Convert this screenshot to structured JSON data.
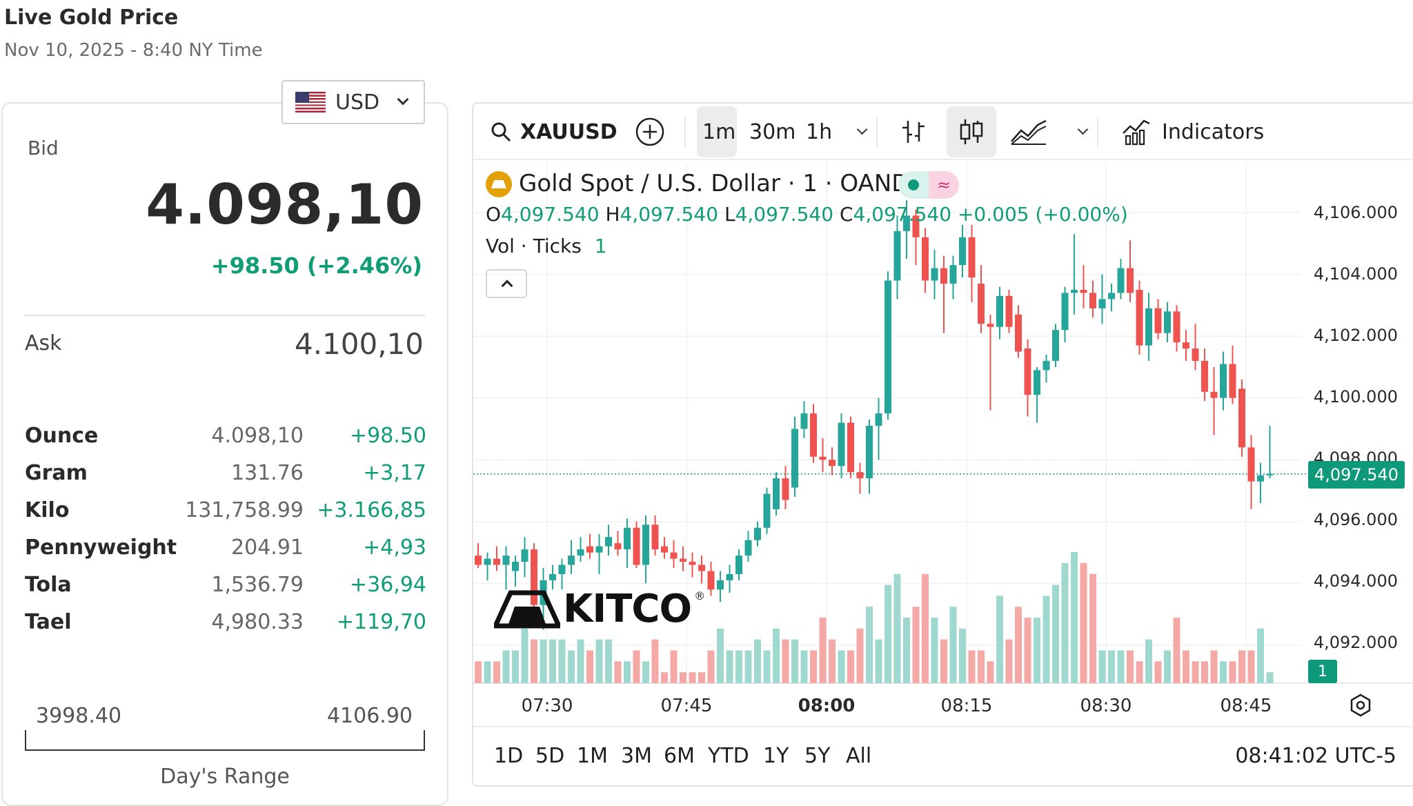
{
  "header": {
    "title": "Live Gold Price",
    "subtitle": "Nov 10, 2025 - 8:40 NY Time"
  },
  "currency": {
    "selected": "USD",
    "flag_icon": "us-flag-icon"
  },
  "quote": {
    "bid_label": "Bid",
    "bid_value": "4.098,10",
    "bid_change": "+98.50 (+2.46%)",
    "ask_label": "Ask",
    "ask_value": "4.100,10"
  },
  "units": [
    {
      "name": "Ounce",
      "price": "4.098,10",
      "change": "+98.50"
    },
    {
      "name": "Gram",
      "price": "131.76",
      "change": "+3,17"
    },
    {
      "name": "Kilo",
      "price": "131,758.99",
      "change": "+3.166,85"
    },
    {
      "name": "Pennyweight",
      "price": "204.91",
      "change": "+4,93"
    },
    {
      "name": "Tola",
      "price": "1,536.79",
      "change": "+36,94"
    },
    {
      "name": "Tael",
      "price": "4,980.33",
      "change": "+119,70"
    }
  ],
  "day_range": {
    "low": "3998.40",
    "high": "4106.90",
    "label": "Day's Range"
  },
  "toolbar": {
    "symbol": "XAUUSD",
    "intervals": [
      "1m",
      "30m",
      "1h"
    ],
    "active_interval": "1m",
    "indicators_label": "Indicators"
  },
  "legend": {
    "title": "Gold Spot / U.S. Dollar · 1 · OANDA",
    "o_label": "O",
    "o_value": "4,097.540",
    "h_label": "H",
    "h_value": "4,097.540",
    "l_label": "L",
    "l_value": "4,097.540",
    "c_label": "C",
    "c_value": "4,097.540",
    "change": "+0.005 (+0.00%)",
    "vol_label": "Vol · Ticks",
    "vol_value": "1"
  },
  "price_axis": {
    "labels": [
      "4,106.000",
      "4,104.000",
      "4,102.000",
      "4,100.000",
      "4,098.000",
      "4,096.000",
      "4,094.000",
      "4,092.000"
    ],
    "last_price": "4,097.540",
    "last_volume": "1"
  },
  "time_axis": {
    "labels": [
      "07:30",
      "07:45",
      "08:00",
      "08:15",
      "08:30",
      "08:45"
    ]
  },
  "periods": [
    "1D",
    "5D",
    "1M",
    "3M",
    "6M",
    "YTD",
    "1Y",
    "5Y",
    "All"
  ],
  "clock": "08:41:02 UTC-5",
  "logo_text": "KITCO",
  "colors": {
    "up": "#26a69a",
    "down": "#ef5350",
    "accent": "#0f9d76"
  },
  "chart_data": {
    "type": "candlestick",
    "interval": "1m",
    "start_time": "07:22",
    "y_range": [
      4091.0,
      4106.5
    ],
    "volume_range": [
      0,
      12
    ],
    "candles": [
      {
        "o": 4094.9,
        "h": 4095.3,
        "l": 4094.5,
        "c": 4094.6,
        "v": 2
      },
      {
        "o": 4094.6,
        "h": 4095.0,
        "l": 4094.1,
        "c": 4094.8,
        "v": 2
      },
      {
        "o": 4094.8,
        "h": 4095.2,
        "l": 4094.4,
        "c": 4094.6,
        "v": 2
      },
      {
        "o": 4094.6,
        "h": 4095.2,
        "l": 4093.8,
        "c": 4094.9,
        "v": 3
      },
      {
        "o": 4094.4,
        "h": 4094.9,
        "l": 4093.9,
        "c": 4094.7,
        "v": 3
      },
      {
        "o": 4094.7,
        "h": 4095.5,
        "l": 4094.2,
        "c": 4095.1,
        "v": 5
      },
      {
        "o": 4095.1,
        "h": 4095.3,
        "l": 4093.0,
        "c": 4093.3,
        "v": 4
      },
      {
        "o": 4093.3,
        "h": 4094.5,
        "l": 4092.5,
        "c": 4094.1,
        "v": 4
      },
      {
        "o": 4094.1,
        "h": 4094.6,
        "l": 4093.8,
        "c": 4094.3,
        "v": 4
      },
      {
        "o": 4094.3,
        "h": 4094.8,
        "l": 4093.8,
        "c": 4094.6,
        "v": 4
      },
      {
        "o": 4094.6,
        "h": 4095.4,
        "l": 4094.3,
        "c": 4094.9,
        "v": 3
      },
      {
        "o": 4094.9,
        "h": 4095.5,
        "l": 4094.7,
        "c": 4095.1,
        "v": 4
      },
      {
        "o": 4095.2,
        "h": 4095.6,
        "l": 4094.8,
        "c": 4095.0,
        "v": 3
      },
      {
        "o": 4095.0,
        "h": 4095.6,
        "l": 4094.3,
        "c": 4095.2,
        "v": 4
      },
      {
        "o": 4095.2,
        "h": 4095.9,
        "l": 4094.9,
        "c": 4095.5,
        "v": 4
      },
      {
        "o": 4095.3,
        "h": 4095.7,
        "l": 4094.9,
        "c": 4095.1,
        "v": 2
      },
      {
        "o": 4095.1,
        "h": 4096.1,
        "l": 4094.5,
        "c": 4095.8,
        "v": 2
      },
      {
        "o": 4095.8,
        "h": 4096.0,
        "l": 4094.5,
        "c": 4094.6,
        "v": 3
      },
      {
        "o": 4094.6,
        "h": 4096.2,
        "l": 4094.0,
        "c": 4095.9,
        "v": 2
      },
      {
        "o": 4095.9,
        "h": 4096.2,
        "l": 4094.9,
        "c": 4095.1,
        "v": 4
      },
      {
        "o": 4095.2,
        "h": 4095.5,
        "l": 4094.8,
        "c": 4095.0,
        "v": 1
      },
      {
        "o": 4095.0,
        "h": 4095.4,
        "l": 4094.5,
        "c": 4094.8,
        "v": 3
      },
      {
        "o": 4094.8,
        "h": 4095.2,
        "l": 4094.4,
        "c": 4094.7,
        "v": 1
      },
      {
        "o": 4094.7,
        "h": 4095.0,
        "l": 4094.2,
        "c": 4094.6,
        "v": 1
      },
      {
        "o": 4094.6,
        "h": 4094.9,
        "l": 4094.0,
        "c": 4094.4,
        "v": 1
      },
      {
        "o": 4094.4,
        "h": 4094.7,
        "l": 4093.6,
        "c": 4093.8,
        "v": 3
      },
      {
        "o": 4093.8,
        "h": 4094.4,
        "l": 4093.4,
        "c": 4094.1,
        "v": 5
      },
      {
        "o": 4094.1,
        "h": 4094.6,
        "l": 4093.7,
        "c": 4094.3,
        "v": 3
      },
      {
        "o": 4094.3,
        "h": 4095.1,
        "l": 4094.1,
        "c": 4094.9,
        "v": 3
      },
      {
        "o": 4094.9,
        "h": 4095.7,
        "l": 4094.7,
        "c": 4095.4,
        "v": 3
      },
      {
        "o": 4095.4,
        "h": 4096.0,
        "l": 4095.2,
        "c": 4095.8,
        "v": 4
      },
      {
        "o": 4095.8,
        "h": 4097.1,
        "l": 4095.6,
        "c": 4096.9,
        "v": 3
      },
      {
        "o": 4096.4,
        "h": 4097.6,
        "l": 4096.2,
        "c": 4097.4,
        "v": 5
      },
      {
        "o": 4097.4,
        "h": 4097.8,
        "l": 4096.4,
        "c": 4096.7,
        "v": 4
      },
      {
        "o": 4097.1,
        "h": 4099.4,
        "l": 4096.8,
        "c": 4099.0,
        "v": 4
      },
      {
        "o": 4099.0,
        "h": 4099.9,
        "l": 4098.7,
        "c": 4099.5,
        "v": 3
      },
      {
        "o": 4099.5,
        "h": 4099.8,
        "l": 4097.9,
        "c": 4098.1,
        "v": 3
      },
      {
        "o": 4098.1,
        "h": 4098.7,
        "l": 4097.6,
        "c": 4098.0,
        "v": 6
      },
      {
        "o": 4098.0,
        "h": 4098.4,
        "l": 4097.5,
        "c": 4097.8,
        "v": 4
      },
      {
        "o": 4097.8,
        "h": 4099.5,
        "l": 4097.4,
        "c": 4099.2,
        "v": 3
      },
      {
        "o": 4099.2,
        "h": 4099.4,
        "l": 4097.4,
        "c": 4097.6,
        "v": 3
      },
      {
        "o": 4097.6,
        "h": 4097.9,
        "l": 4096.9,
        "c": 4097.4,
        "v": 5
      },
      {
        "o": 4097.4,
        "h": 4099.3,
        "l": 4096.9,
        "c": 4099.1,
        "v": 7
      },
      {
        "o": 4099.1,
        "h": 4100.0,
        "l": 4098.0,
        "c": 4099.5,
        "v": 4
      },
      {
        "o": 4099.5,
        "h": 4104.1,
        "l": 4099.3,
        "c": 4103.8,
        "v": 9
      },
      {
        "o": 4103.8,
        "h": 4105.9,
        "l": 4103.2,
        "c": 4105.4,
        "v": 10
      },
      {
        "o": 4105.4,
        "h": 4106.4,
        "l": 4104.5,
        "c": 4105.9,
        "v": 6
      },
      {
        "o": 4105.9,
        "h": 4106.1,
        "l": 4104.3,
        "c": 4105.2,
        "v": 7
      },
      {
        "o": 4105.2,
        "h": 4105.5,
        "l": 4103.4,
        "c": 4103.8,
        "v": 10
      },
      {
        "o": 4103.8,
        "h": 4104.8,
        "l": 4103.2,
        "c": 4104.2,
        "v": 6
      },
      {
        "o": 4104.2,
        "h": 4104.6,
        "l": 4102.1,
        "c": 4103.7,
        "v": 4
      },
      {
        "o": 4103.7,
        "h": 4104.6,
        "l": 4103.2,
        "c": 4104.3,
        "v": 7
      },
      {
        "o": 4104.3,
        "h": 4105.6,
        "l": 4103.9,
        "c": 4105.2,
        "v": 5
      },
      {
        "o": 4105.2,
        "h": 4105.6,
        "l": 4103.1,
        "c": 4103.9,
        "v": 3
      },
      {
        "o": 4103.7,
        "h": 4104.3,
        "l": 4102.1,
        "c": 4102.4,
        "v": 3
      },
      {
        "o": 4102.4,
        "h": 4102.7,
        "l": 4099.6,
        "c": 4102.3,
        "v": 2
      },
      {
        "o": 4102.3,
        "h": 4103.6,
        "l": 4101.9,
        "c": 4103.3,
        "v": 8
      },
      {
        "o": 4103.3,
        "h": 4103.5,
        "l": 4102.1,
        "c": 4102.3,
        "v": 4
      },
      {
        "o": 4102.7,
        "h": 4103.0,
        "l": 4101.3,
        "c": 4101.5,
        "v": 7
      },
      {
        "o": 4101.6,
        "h": 4101.9,
        "l": 4099.4,
        "c": 4100.1,
        "v": 6
      },
      {
        "o": 4100.1,
        "h": 4101.0,
        "l": 4099.2,
        "c": 4100.9,
        "v": 6
      },
      {
        "o": 4100.9,
        "h": 4101.4,
        "l": 4100.5,
        "c": 4101.2,
        "v": 8
      },
      {
        "o": 4101.2,
        "h": 4102.4,
        "l": 4101.0,
        "c": 4102.2,
        "v": 9
      },
      {
        "o": 4102.2,
        "h": 4103.6,
        "l": 4101.8,
        "c": 4103.4,
        "v": 11
      },
      {
        "o": 4103.4,
        "h": 4105.3,
        "l": 4102.7,
        "c": 4103.5,
        "v": 12
      },
      {
        "o": 4103.5,
        "h": 4104.3,
        "l": 4102.9,
        "c": 4103.4,
        "v": 11
      },
      {
        "o": 4103.4,
        "h": 4103.8,
        "l": 4102.6,
        "c": 4102.9,
        "v": 10
      },
      {
        "o": 4102.9,
        "h": 4104.0,
        "l": 4102.4,
        "c": 4103.2,
        "v": 3
      },
      {
        "o": 4103.2,
        "h": 4103.7,
        "l": 4102.8,
        "c": 4103.4,
        "v": 3
      },
      {
        "o": 4103.4,
        "h": 4104.5,
        "l": 4103.2,
        "c": 4104.2,
        "v": 3
      },
      {
        "o": 4104.2,
        "h": 4105.1,
        "l": 4103.1,
        "c": 4103.4,
        "v": 3
      },
      {
        "o": 4103.5,
        "h": 4103.8,
        "l": 4101.4,
        "c": 4101.7,
        "v": 2
      },
      {
        "o": 4101.7,
        "h": 4103.4,
        "l": 4101.2,
        "c": 4102.9,
        "v": 4
      },
      {
        "o": 4102.9,
        "h": 4103.2,
        "l": 4101.9,
        "c": 4102.1,
        "v": 2
      },
      {
        "o": 4102.1,
        "h": 4103.1,
        "l": 4101.8,
        "c": 4102.8,
        "v": 3
      },
      {
        "o": 4102.8,
        "h": 4103.0,
        "l": 4101.5,
        "c": 4101.8,
        "v": 6
      },
      {
        "o": 4101.8,
        "h": 4102.2,
        "l": 4101.2,
        "c": 4101.6,
        "v": 3
      },
      {
        "o": 4101.6,
        "h": 4102.4,
        "l": 4100.9,
        "c": 4101.2,
        "v": 2
      },
      {
        "o": 4101.2,
        "h": 4101.6,
        "l": 4099.9,
        "c": 4100.2,
        "v": 2
      },
      {
        "o": 4100.2,
        "h": 4101.0,
        "l": 4098.8,
        "c": 4100.0,
        "v": 3
      },
      {
        "o": 4100.0,
        "h": 4101.5,
        "l": 4099.6,
        "c": 4101.1,
        "v": 2
      },
      {
        "o": 4101.1,
        "h": 4101.7,
        "l": 4099.8,
        "c": 4100.0,
        "v": 2
      },
      {
        "o": 4100.3,
        "h": 4100.6,
        "l": 4098.1,
        "c": 4098.4,
        "v": 3
      },
      {
        "o": 4098.4,
        "h": 4098.8,
        "l": 4096.4,
        "c": 4097.3,
        "v": 3
      },
      {
        "o": 4097.3,
        "h": 4097.9,
        "l": 4096.6,
        "c": 4097.5,
        "v": 5
      },
      {
        "o": 4097.5,
        "h": 4099.1,
        "l": 4097.4,
        "c": 4097.54,
        "v": 1
      }
    ]
  }
}
